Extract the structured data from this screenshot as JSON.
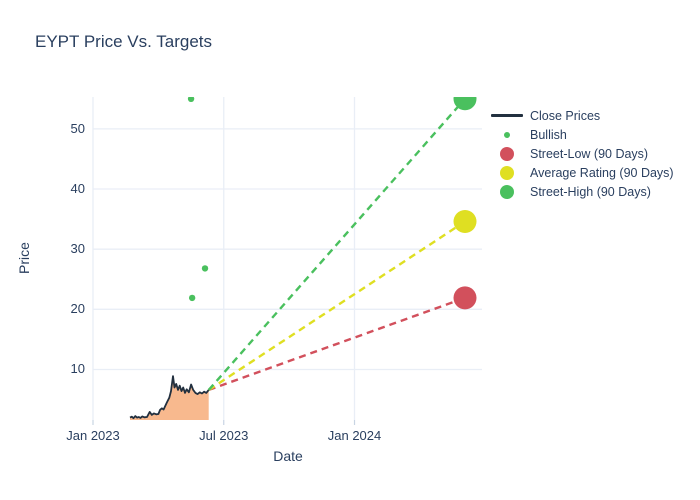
{
  "title": "EYPT Price Vs. Targets",
  "axes": {
    "x_label": "Date",
    "y_label": "Price"
  },
  "colors": {
    "background": "#ffffff",
    "text": "#2a3f5f",
    "grid": "#e9eef6",
    "tick": "#c8d4e3",
    "close_line": "#22303f",
    "close_fill": "#f8b98e",
    "bullish": "#4ac05e",
    "street_low": "#d2505c",
    "average": "#dfdf22",
    "street_high": "#4ac05e"
  },
  "legend": {
    "items": [
      {
        "label": "Close Prices",
        "marker": "line",
        "color_key": "close_line"
      },
      {
        "label": "Bullish",
        "marker": "dot-small",
        "color_key": "bullish"
      },
      {
        "label": "Street-Low (90 Days)",
        "marker": "dot-large",
        "color_key": "street_low"
      },
      {
        "label": "Average Rating (90 Days)",
        "marker": "dot-large",
        "color_key": "average"
      },
      {
        "label": "Street-High (90 Days)",
        "marker": "dot-large",
        "color_key": "street_high"
      }
    ]
  },
  "chart_data": {
    "type": "line",
    "title": "EYPT Price Vs. Targets",
    "xlabel": "Date",
    "ylabel": "Price",
    "x_unit": "months_since_2023-01-01",
    "xlim": [
      0,
      17.85
    ],
    "ylim": [
      1.6,
      55.3
    ],
    "grid": true,
    "legend_position": "right-top",
    "x_ticks": [
      {
        "m": 0,
        "label": "Jan 2023"
      },
      {
        "m": 6,
        "label": "Jul 2023"
      },
      {
        "m": 12,
        "label": "Jan 2024"
      }
    ],
    "y_ticks": [
      10,
      20,
      30,
      40,
      50
    ],
    "series": [
      {
        "name": "Close Prices",
        "type": "line",
        "color_key": "close_line",
        "fill_to_bottom": true,
        "fill_color_key": "close_fill",
        "points": [
          [
            1.7,
            2.0
          ],
          [
            1.78,
            2.15
          ],
          [
            1.86,
            1.9
          ],
          [
            1.94,
            2.25
          ],
          [
            2.02,
            2.0
          ],
          [
            2.1,
            2.1
          ],
          [
            2.18,
            1.95
          ],
          [
            2.26,
            2.2
          ],
          [
            2.36,
            2.05
          ],
          [
            2.48,
            2.1
          ],
          [
            2.6,
            2.95
          ],
          [
            2.7,
            2.45
          ],
          [
            2.8,
            2.7
          ],
          [
            2.9,
            2.55
          ],
          [
            3.0,
            2.6
          ],
          [
            3.08,
            3.3
          ],
          [
            3.16,
            3.55
          ],
          [
            3.24,
            3.35
          ],
          [
            3.32,
            4.0
          ],
          [
            3.4,
            4.6
          ],
          [
            3.5,
            5.3
          ],
          [
            3.58,
            6.4
          ],
          [
            3.67,
            8.9
          ],
          [
            3.74,
            7.0
          ],
          [
            3.82,
            7.6
          ],
          [
            3.9,
            6.6
          ],
          [
            3.98,
            7.3
          ],
          [
            4.06,
            6.4
          ],
          [
            4.14,
            7.0
          ],
          [
            4.22,
            6.1
          ],
          [
            4.3,
            6.7
          ],
          [
            4.4,
            6.2
          ],
          [
            4.5,
            7.5
          ],
          [
            4.6,
            6.6
          ],
          [
            4.7,
            6.1
          ],
          [
            4.8,
            5.9
          ],
          [
            4.9,
            6.2
          ],
          [
            5.0,
            6.0
          ],
          [
            5.1,
            6.3
          ],
          [
            5.2,
            6.1
          ],
          [
            5.31,
            6.6
          ]
        ]
      },
      {
        "name": "Bullish",
        "type": "scatter",
        "color_key": "bullish",
        "marker_radius": 3.2,
        "points": [
          [
            4.5,
            55.0
          ],
          [
            4.55,
            21.9
          ],
          [
            5.14,
            26.8
          ]
        ]
      },
      {
        "name": "Street-Low (90 Days)",
        "type": "scatter",
        "color_key": "street_low",
        "marker_radius": 11.5,
        "dash_from": [
          5.31,
          6.6
        ],
        "points": [
          [
            17.07,
            21.9
          ]
        ]
      },
      {
        "name": "Average Rating (90 Days)",
        "type": "scatter",
        "color_key": "average",
        "marker_radius": 11.5,
        "dash_from": [
          5.31,
          6.6
        ],
        "points": [
          [
            17.07,
            34.6
          ]
        ]
      },
      {
        "name": "Street-High (90 Days)",
        "type": "scatter",
        "color_key": "street_high",
        "marker_radius": 11.5,
        "dash_from": [
          5.31,
          6.6
        ],
        "points": [
          [
            17.07,
            55.0
          ]
        ]
      }
    ]
  }
}
